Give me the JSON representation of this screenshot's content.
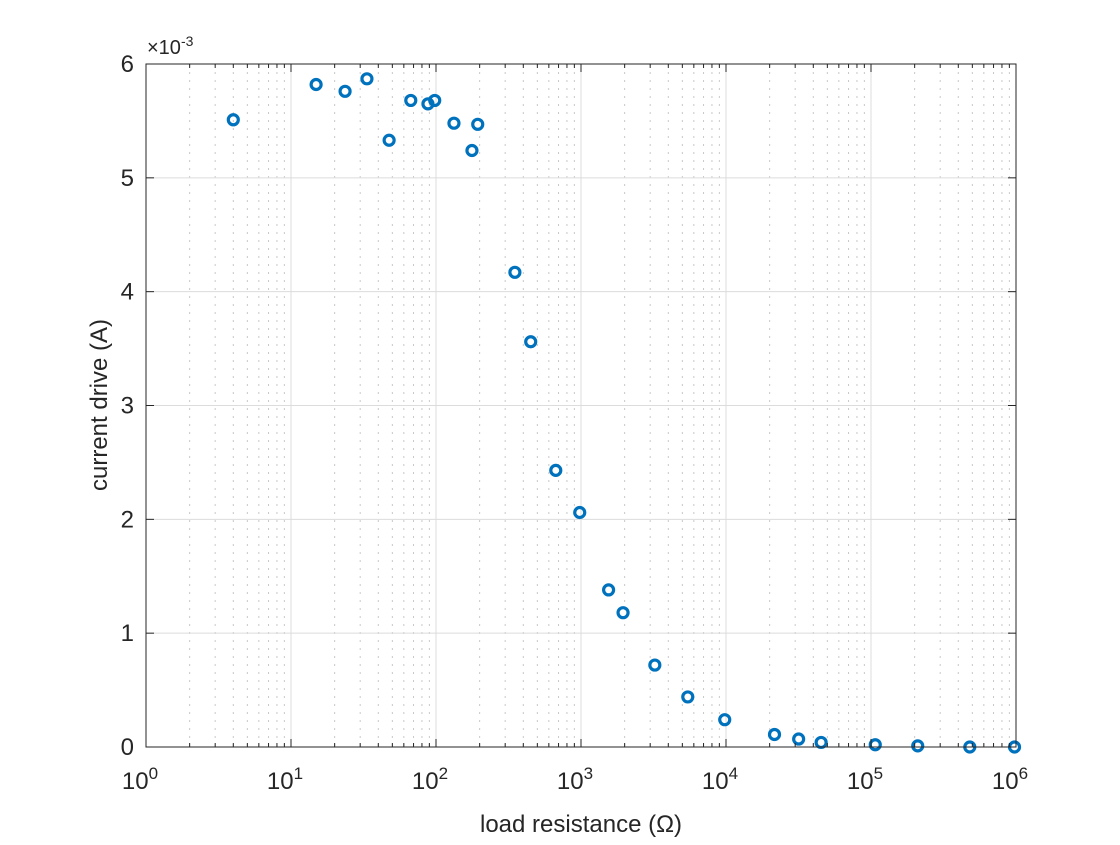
{
  "chart_data": {
    "type": "scatter",
    "title": "",
    "xlabel": "load resistance (Ω)",
    "ylabel": "current drive (A)",
    "xscale": "log",
    "xlim": [
      1,
      1000000
    ],
    "ylim": [
      0,
      0.006
    ],
    "y_exponent_label": "×10",
    "y_exponent": "-3",
    "x_ticks": [
      {
        "base": "10",
        "exp": "0"
      },
      {
        "base": "10",
        "exp": "1"
      },
      {
        "base": "10",
        "exp": "2"
      },
      {
        "base": "10",
        "exp": "3"
      },
      {
        "base": "10",
        "exp": "4"
      },
      {
        "base": "10",
        "exp": "5"
      },
      {
        "base": "10",
        "exp": "6"
      }
    ],
    "y_ticks": [
      "0",
      "1",
      "2",
      "3",
      "4",
      "5",
      "6"
    ],
    "grid": true,
    "marker": "circle",
    "color": "#0072BD",
    "series": [
      {
        "name": "current drive",
        "x": [
          4.0,
          14.9,
          23.6,
          33.4,
          47.5,
          67,
          88,
          98,
          133,
          177,
          194,
          350,
          450,
          670,
          980,
          1550,
          1950,
          3230,
          5450,
          9800,
          21600,
          31700,
          45300,
          107000,
          210000,
          480000,
          977000
        ],
        "y": [
          0.00551,
          0.00582,
          0.00576,
          0.00587,
          0.00533,
          0.00568,
          0.00565,
          0.00568,
          0.00548,
          0.00524,
          0.00547,
          0.00417,
          0.00356,
          0.00243,
          0.00206,
          0.00138,
          0.00118,
          0.00072,
          0.00044,
          0.00024,
          0.00011,
          7e-05,
          4e-05,
          2e-05,
          1e-05,
          0.0,
          0.0
        ]
      }
    ]
  }
}
